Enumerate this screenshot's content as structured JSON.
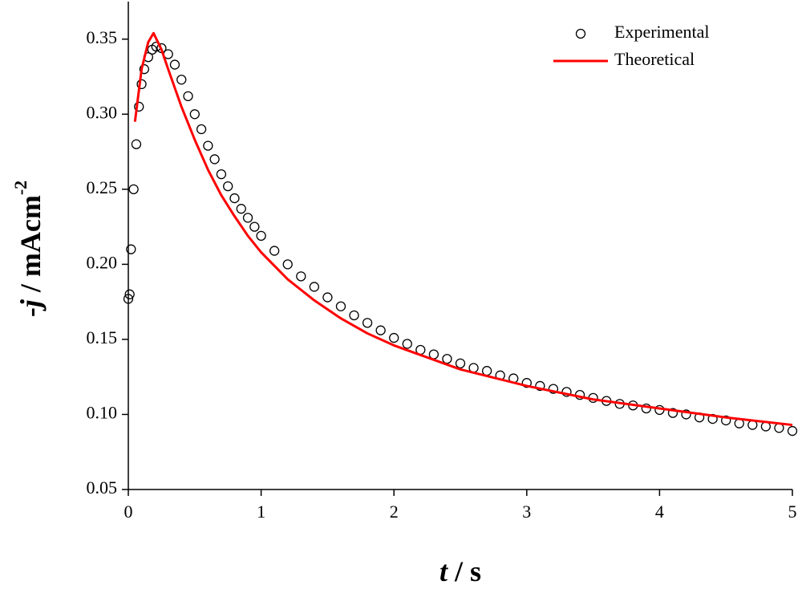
{
  "chart_data": {
    "type": "line",
    "xlabel_parts": [
      "t",
      " / s"
    ],
    "ylabel_parts": [
      "-",
      "j",
      " / mAcm",
      "-2"
    ],
    "xlim": [
      0,
      5
    ],
    "xticks": [
      0,
      1,
      2,
      3,
      4,
      5
    ],
    "ylim": [
      0.05,
      0.375
    ],
    "yticks": [
      0.05,
      0.1,
      0.15,
      0.2,
      0.25,
      0.3,
      0.35
    ],
    "legend": "upper right",
    "series": [
      {
        "name": "Experimental",
        "color": "#000000",
        "style": "markers",
        "x": [
          0,
          0.01,
          0.02,
          0.04,
          0.06,
          0.08,
          0.1,
          0.12,
          0.15,
          0.18,
          0.21,
          0.25,
          0.3,
          0.35,
          0.4,
          0.45,
          0.5,
          0.55,
          0.6,
          0.65,
          0.7,
          0.75,
          0.8,
          0.85,
          0.9,
          0.95,
          1.0,
          1.1,
          1.2,
          1.3,
          1.4,
          1.5,
          1.6,
          1.7,
          1.8,
          1.9,
          2.0,
          2.1,
          2.2,
          2.3,
          2.4,
          2.5,
          2.6,
          2.7,
          2.8,
          2.9,
          3.0,
          3.1,
          3.2,
          3.3,
          3.4,
          3.5,
          3.6,
          3.7,
          3.8,
          3.9,
          4.0,
          4.1,
          4.2,
          4.3,
          4.4,
          4.5,
          4.6,
          4.7,
          4.8,
          4.9,
          5.0
        ],
        "values": [
          0.177,
          0.18,
          0.21,
          0.25,
          0.28,
          0.305,
          0.32,
          0.33,
          0.338,
          0.343,
          0.345,
          0.344,
          0.34,
          0.333,
          0.323,
          0.312,
          0.3,
          0.29,
          0.279,
          0.27,
          0.26,
          0.252,
          0.244,
          0.237,
          0.231,
          0.225,
          0.219,
          0.209,
          0.2,
          0.192,
          0.185,
          0.178,
          0.172,
          0.166,
          0.161,
          0.156,
          0.151,
          0.147,
          0.143,
          0.14,
          0.137,
          0.134,
          0.131,
          0.129,
          0.126,
          0.124,
          0.121,
          0.119,
          0.117,
          0.115,
          0.113,
          0.111,
          0.109,
          0.107,
          0.106,
          0.104,
          0.103,
          0.101,
          0.1,
          0.098,
          0.097,
          0.096,
          0.094,
          0.093,
          0.092,
          0.091,
          0.089
        ]
      },
      {
        "name": "Theoretical",
        "color": "#ff0000",
        "style": "line",
        "x": [
          0.05,
          0.1,
          0.15,
          0.19,
          0.25,
          0.3,
          0.4,
          0.5,
          0.6,
          0.7,
          0.8,
          0.9,
          1.0,
          1.2,
          1.4,
          1.6,
          1.8,
          2.0,
          2.5,
          3.0,
          3.5,
          4.0,
          4.5,
          5.0
        ],
        "values": [
          0.295,
          0.33,
          0.348,
          0.354,
          0.343,
          0.33,
          0.305,
          0.283,
          0.263,
          0.246,
          0.232,
          0.219,
          0.208,
          0.19,
          0.176,
          0.164,
          0.154,
          0.146,
          0.13,
          0.119,
          0.11,
          0.104,
          0.098,
          0.093
        ]
      }
    ]
  }
}
